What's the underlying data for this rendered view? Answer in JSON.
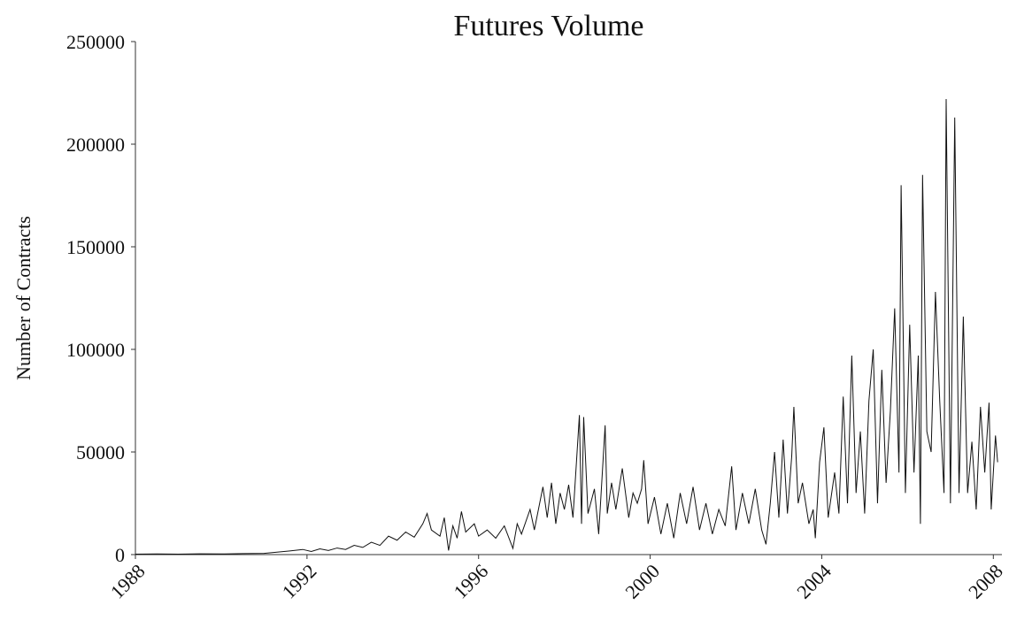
{
  "chart_data": {
    "type": "line",
    "title": "Futures Volume",
    "y_label": "Number of Contracts",
    "x": [
      1988.0,
      1988.5,
      1989.0,
      1989.5,
      1990.0,
      1990.5,
      1991.0,
      1991.3,
      1991.6,
      1991.9,
      1992.1,
      1992.3,
      1992.5,
      1992.7,
      1992.9,
      1993.1,
      1993.3,
      1993.5,
      1993.7,
      1993.9,
      1994.1,
      1994.3,
      1994.5,
      1994.7,
      1994.8,
      1994.9,
      1995.1,
      1995.2,
      1995.3,
      1995.4,
      1995.5,
      1995.6,
      1995.7,
      1995.9,
      1996.0,
      1996.2,
      1996.4,
      1996.6,
      1996.8,
      1996.9,
      1997.0,
      1997.2,
      1997.3,
      1997.5,
      1997.6,
      1997.7,
      1997.8,
      1997.9,
      1998.0,
      1998.1,
      1998.2,
      1998.35,
      1998.4,
      1998.45,
      1998.55,
      1998.7,
      1998.8,
      1998.95,
      1999.0,
      1999.1,
      1999.2,
      1999.35,
      1999.5,
      1999.6,
      1999.7,
      1999.8,
      1999.85,
      1999.95,
      2000.1,
      2000.25,
      2000.4,
      2000.55,
      2000.7,
      2000.85,
      2001.0,
      2001.15,
      2001.3,
      2001.45,
      2001.6,
      2001.75,
      2001.9,
      2002.0,
      2002.15,
      2002.3,
      2002.45,
      2002.6,
      2002.7,
      2002.8,
      2002.9,
      2003.0,
      2003.1,
      2003.2,
      2003.3,
      2003.35,
      2003.45,
      2003.55,
      2003.7,
      2003.8,
      2003.85,
      2003.95,
      2004.05,
      2004.15,
      2004.3,
      2004.4,
      2004.5,
      2004.6,
      2004.7,
      2004.8,
      2004.9,
      2005.0,
      2005.1,
      2005.2,
      2005.3,
      2005.4,
      2005.5,
      2005.6,
      2005.7,
      2005.8,
      2005.85,
      2005.95,
      2006.05,
      2006.15,
      2006.25,
      2006.3,
      2006.35,
      2006.45,
      2006.55,
      2006.65,
      2006.75,
      2006.85,
      2006.9,
      2007.0,
      2007.1,
      2007.2,
      2007.3,
      2007.4,
      2007.5,
      2007.6,
      2007.7,
      2007.8,
      2007.9,
      2007.95,
      2008.05,
      2008.1
    ],
    "series": [
      {
        "name": "Volume",
        "color": "#111111",
        "values": [
          200,
          300,
          200,
          400,
          300,
          500,
          600,
          1200,
          1800,
          2500,
          1500,
          2800,
          2000,
          3200,
          2500,
          4500,
          3500,
          6000,
          4500,
          9000,
          7000,
          11000,
          8500,
          15000,
          20000,
          12000,
          9000,
          18000,
          2000,
          14000,
          8000,
          21000,
          11000,
          15000,
          9000,
          12000,
          8000,
          14000,
          3000,
          15000,
          10000,
          22000,
          12000,
          33000,
          18000,
          35000,
          15000,
          30000,
          22000,
          34000,
          18000,
          68000,
          15000,
          67000,
          20000,
          32000,
          10000,
          63000,
          20000,
          35000,
          22000,
          42000,
          18000,
          30000,
          25000,
          32000,
          46000,
          15000,
          28000,
          10000,
          25000,
          8000,
          30000,
          15000,
          33000,
          12000,
          25000,
          10000,
          22000,
          14000,
          43000,
          12000,
          30000,
          15000,
          32000,
          12000,
          5000,
          25000,
          50000,
          18000,
          56000,
          20000,
          48000,
          72000,
          25000,
          35000,
          15000,
          22000,
          8000,
          45000,
          62000,
          18000,
          40000,
          20000,
          77000,
          25000,
          97000,
          30000,
          60000,
          20000,
          75000,
          100000,
          25000,
          90000,
          35000,
          70000,
          120000,
          40000,
          180000,
          30000,
          112000,
          40000,
          97000,
          15000,
          185000,
          60000,
          50000,
          128000,
          75000,
          30000,
          222000,
          25000,
          213000,
          30000,
          116000,
          30000,
          55000,
          22000,
          72000,
          40000,
          74000,
          22000,
          58000,
          45000
        ]
      }
    ],
    "xlim": [
      1988,
      2008.2
    ],
    "xticks": [
      1988,
      1992,
      1996,
      2000,
      2004,
      2008
    ],
    "ylim": [
      0,
      250000
    ],
    "yticks": [
      0,
      50000,
      100000,
      150000,
      200000,
      250000
    ]
  }
}
